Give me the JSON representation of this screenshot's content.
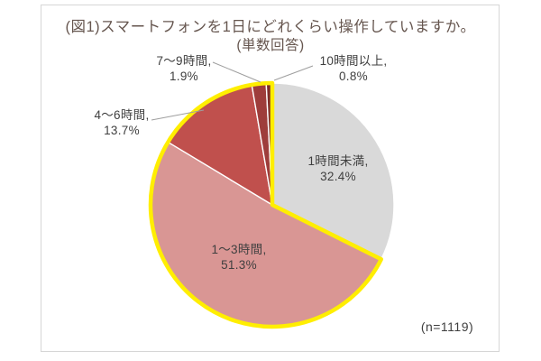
{
  "chart_data": {
    "type": "pie",
    "title": "(図1)スマートフォンを1日にどれくらい操作していますか。",
    "subtitle": "(単数回答)",
    "sample_note": "(n=1119)",
    "unit": "%",
    "start_angle_deg": 0,
    "direction": "clockwise",
    "legend_position": "none",
    "highlight_color": "#ffee00",
    "slice_border_color": "#ffffff",
    "slices": [
      {
        "label": "1時間未満",
        "value": 32.4,
        "label_text": "1時間未満,",
        "value_text": "32.4%",
        "color": "#d9d9d9",
        "highlighted": false
      },
      {
        "label": "1〜3時間",
        "value": 51.3,
        "label_text": "1〜3時間,",
        "value_text": "51.3%",
        "color": "#d99694",
        "highlighted": true
      },
      {
        "label": "4〜6時間",
        "value": 13.7,
        "label_text": "4〜6時間,",
        "value_text": "13.7%",
        "color": "#c0504d",
        "highlighted": true
      },
      {
        "label": "7〜9時間",
        "value": 1.9,
        "label_text": "7〜9時間,",
        "value_text": "1.9%",
        "color": "#9e3d3b",
        "highlighted": true
      },
      {
        "label": "10時間以上",
        "value": 0.8,
        "label_text": "10時間以上,",
        "value_text": "0.8%",
        "color": "#7f2d2b",
        "highlighted": true
      }
    ]
  }
}
